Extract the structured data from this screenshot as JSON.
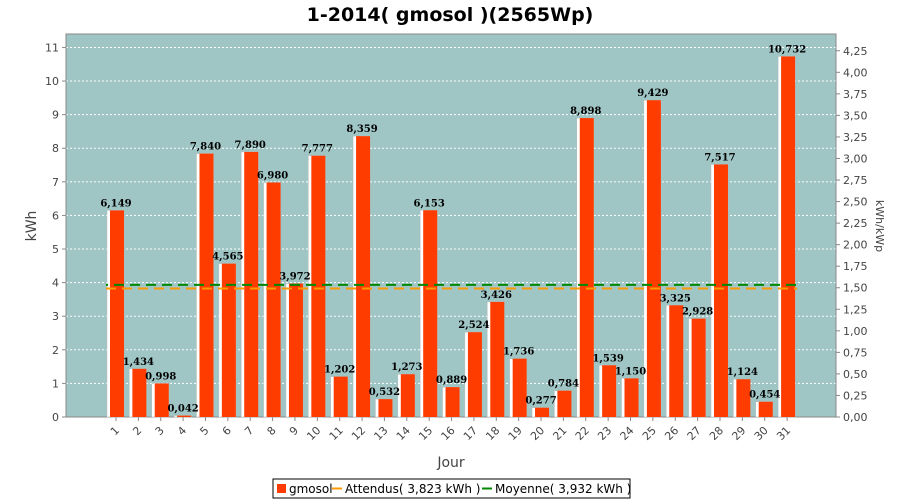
{
  "chart_data": {
    "type": "bar",
    "title": "1-2014( gmosol )(2565Wp)",
    "xlabel": "Jour",
    "ylabel": "kWh",
    "y2label": "kWh/kWp",
    "categories": [
      "1",
      "2",
      "3",
      "4",
      "5",
      "6",
      "7",
      "8",
      "9",
      "10",
      "11",
      "12",
      "13",
      "14",
      "15",
      "16",
      "17",
      "18",
      "19",
      "20",
      "21",
      "22",
      "23",
      "24",
      "25",
      "26",
      "27",
      "28",
      "29",
      "30",
      "31"
    ],
    "series": [
      {
        "name": "gmosol",
        "color": "#ff3c00",
        "values": [
          6.149,
          1.434,
          0.998,
          0.042,
          7.84,
          4.565,
          7.89,
          6.98,
          3.972,
          7.777,
          1.202,
          8.359,
          0.532,
          1.273,
          6.153,
          0.889,
          2.524,
          3.426,
          1.736,
          0.277,
          0.784,
          8.898,
          1.539,
          1.15,
          9.429,
          3.325,
          2.928,
          7.517,
          1.124,
          0.454,
          10.732
        ],
        "labels": [
          "6,149",
          "1,434",
          "0,998",
          "0,042",
          "7,840",
          "4,565",
          "7,890",
          "6,980",
          "3,972",
          "7,777",
          "1,202",
          "8,359",
          "0,532",
          "1,273",
          "6,153",
          "0,889",
          "2,524",
          "3,426",
          "1,736",
          "0,277",
          "0,784",
          "8,898",
          "1,539",
          "1,150",
          "9,429",
          "3,325",
          "2,928",
          "7,517",
          "1,124",
          "0,454",
          "10,732"
        ]
      }
    ],
    "reference_lines": [
      {
        "name": "Attendus( 3,823 kWh )",
        "value": 3.823,
        "color": "#ff9900"
      },
      {
        "name": "Moyenne( 3,932 kWh )",
        "value": 3.932,
        "color": "#008800"
      }
    ],
    "ylim": [
      0,
      11.4
    ],
    "yticks": [
      "0",
      "1",
      "2",
      "3",
      "4",
      "5",
      "6",
      "7",
      "8",
      "9",
      "10",
      "11"
    ],
    "y2ticks": [
      "0,00",
      "0,25",
      "0,50",
      "0,75",
      "1,00",
      "1,25",
      "1,50",
      "1,75",
      "2,00",
      "2,25",
      "2,50",
      "2,75",
      "3,00",
      "3,25",
      "3,50",
      "3,75",
      "4,00",
      "4,25"
    ],
    "legend_position": "bottom",
    "grid": true,
    "plot_background": "#9fc5c5"
  }
}
